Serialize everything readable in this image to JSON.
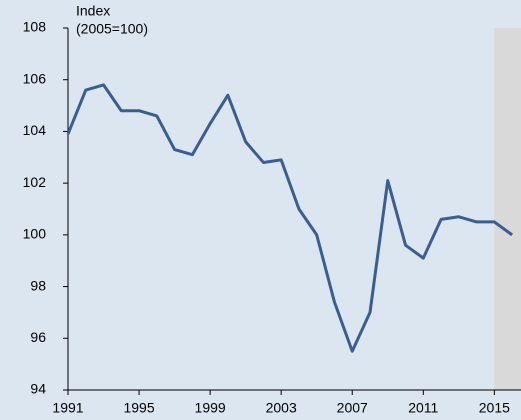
{
  "chart_data": {
    "type": "line",
    "annotation": [
      "Index",
      "(2005=100)"
    ],
    "x": [
      1991,
      1992,
      1993,
      1994,
      1995,
      1996,
      1997,
      1998,
      1999,
      2000,
      2001,
      2002,
      2003,
      2004,
      2005,
      2006,
      2007,
      2008,
      2009,
      2010,
      2011,
      2012,
      2013,
      2014,
      2015,
      2016
    ],
    "series": [
      {
        "color": "#3a5e8f",
        "values": [
          103.9,
          105.6,
          105.8,
          104.8,
          104.8,
          104.6,
          103.3,
          103.1,
          104.3,
          105.4,
          103.6,
          102.8,
          102.9,
          101.0,
          100.0,
          97.4,
          95.5,
          97.0,
          102.1,
          99.6,
          99.1,
          100.6,
          100.7,
          100.5,
          100.5,
          100.0
        ]
      }
    ],
    "xlim": [
      1991,
      2016.5
    ],
    "xticks": [
      1991,
      1995,
      1999,
      2003,
      2007,
      2011,
      2015
    ],
    "ylim": [
      94,
      108
    ],
    "yticks": [
      94,
      96,
      98,
      100,
      102,
      104,
      106,
      108
    ],
    "shaded_from": 2015,
    "shade_color": "#d9d9d9",
    "grid": false
  }
}
